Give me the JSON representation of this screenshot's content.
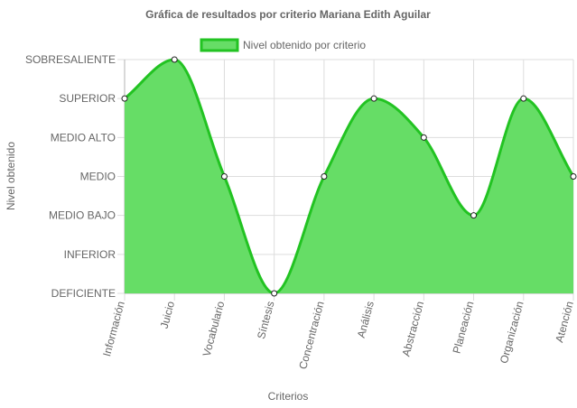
{
  "chart_data": {
    "type": "area",
    "title": "Gráfica de resultados por criterio Mariana Edith Aguilar",
    "xlabel": "Criterios",
    "ylabel": "Nivel obtenido",
    "categories": [
      "Información",
      "Juicio",
      "Vocabulario",
      "Síntesis",
      "Concentración",
      "Análisis",
      "Abstracción",
      "Planeación",
      "Organización",
      "Atención"
    ],
    "y_levels": [
      "DEFICIENTE",
      "INFERIOR",
      "MEDIO BAJO",
      "MEDIO",
      "MEDIO ALTO",
      "SUPERIOR",
      "SOBRESALIENTE"
    ],
    "series": [
      {
        "name": "Nivel obtenido por criterio",
        "values": [
          5,
          6,
          3,
          0,
          3,
          5,
          4,
          2,
          5,
          3
        ]
      }
    ],
    "ylim": [
      0,
      6
    ],
    "grid": true,
    "legend": "top-center",
    "colors": {
      "fill": "#66dd66",
      "stroke": "#22c322",
      "grid": "#dddddd",
      "axis": "#b3b3b3"
    }
  }
}
